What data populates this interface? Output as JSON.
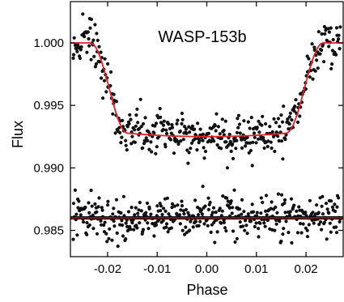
{
  "chart_data": {
    "type": "scatter",
    "title": "WASP-153b",
    "xlabel": "Phase",
    "ylabel": "Flux",
    "xlim": [
      -0.0275,
      0.0275
    ],
    "ylim": [
      0.9829,
      1.0033
    ],
    "x_ticks": [
      -0.02,
      -0.01,
      0.0,
      0.01,
      0.02
    ],
    "x_tick_labels": [
      "-0.02",
      "-0.01",
      "0.00",
      "0.01",
      "0.02"
    ],
    "y_ticks": [
      0.985,
      0.99,
      0.995,
      1.0
    ],
    "y_tick_labels": [
      "0.985",
      "0.990",
      "0.995",
      "1.000"
    ],
    "grid": false,
    "transit": {
      "out_of_transit_flux": 1.0,
      "minimum_flux": 0.9925,
      "ingress_phase": -0.0235,
      "egress_phase": 0.0235,
      "ingress_duration": 0.0075,
      "scatter": 0.0008
    },
    "residuals": {
      "baseline_flux": 0.986,
      "scatter": 0.00085
    },
    "series": [
      {
        "name": "",
        "kind": "points",
        "color": "#111111"
      },
      {
        "name": "",
        "kind": "model",
        "color": "#e0202a"
      },
      {
        "name": "",
        "kind": "residual-points",
        "color": "#111111"
      },
      {
        "name": "",
        "kind": "residual-baseline",
        "color": "#8b1a1a"
      }
    ]
  }
}
